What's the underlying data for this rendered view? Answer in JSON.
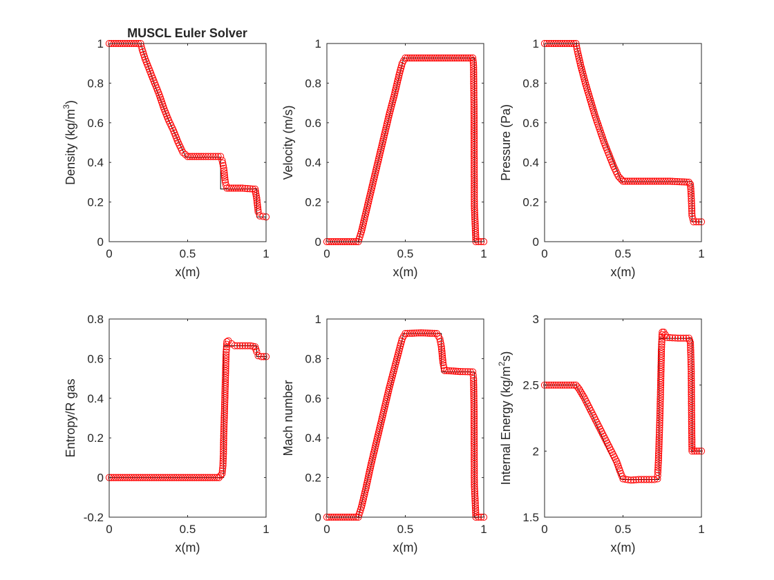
{
  "figure_title": "MUSCL Euler Solver",
  "colors": {
    "marker": "#ff0000",
    "exact": "#000000",
    "axes": "#262626"
  },
  "chart_data": [
    {
      "type": "scatter",
      "id": "density",
      "title": "MUSCL Euler Solver",
      "xlabel": "x(m)",
      "ylabel_parts": [
        "Density (kg/m",
        "3",
        ")"
      ],
      "xlim": [
        0,
        1
      ],
      "ylim": [
        0,
        1
      ],
      "xticks": [
        "0",
        "0.5",
        "1"
      ],
      "yticks": [
        "0",
        "0.2",
        "0.4",
        "0.6",
        "0.8",
        "1"
      ],
      "xtick_values": [
        0,
        0.5,
        1
      ],
      "ytick_values": [
        0,
        0.2,
        0.4,
        0.6,
        0.8,
        1
      ],
      "grid": false,
      "series": [
        {
          "style": "line-black",
          "points": [
            [
              0,
              1
            ],
            [
              0.2,
              1
            ],
            [
              0.29,
              0.79
            ],
            [
              0.38,
              0.61
            ],
            [
              0.49,
              0.426
            ],
            [
              0.71,
              0.426
            ],
            [
              0.71,
              0.266
            ],
            [
              0.94,
              0.266
            ],
            [
              0.94,
              0.125
            ],
            [
              1,
              0.125
            ]
          ]
        },
        {
          "style": "marker-red-circle",
          "points": [
            [
              0,
              1
            ],
            [
              0.2,
              1
            ],
            [
              0.21,
              0.97
            ],
            [
              0.23,
              0.92
            ],
            [
              0.26,
              0.86
            ],
            [
              0.29,
              0.8
            ],
            [
              0.32,
              0.74
            ],
            [
              0.35,
              0.67
            ],
            [
              0.38,
              0.61
            ],
            [
              0.41,
              0.56
            ],
            [
              0.44,
              0.5
            ],
            [
              0.47,
              0.45
            ],
            [
              0.5,
              0.43
            ],
            [
              0.6,
              0.43
            ],
            [
              0.71,
              0.43
            ],
            [
              0.72,
              0.41
            ],
            [
              0.73,
              0.37
            ],
            [
              0.74,
              0.3
            ],
            [
              0.75,
              0.27
            ],
            [
              0.85,
              0.27
            ],
            [
              0.93,
              0.265
            ],
            [
              0.94,
              0.22
            ],
            [
              0.95,
              0.15
            ],
            [
              0.96,
              0.13
            ],
            [
              1,
              0.125
            ]
          ]
        }
      ]
    },
    {
      "type": "scatter",
      "id": "velocity",
      "xlabel": "x(m)",
      "ylabel_parts": [
        "Velocity (m/s)"
      ],
      "xlim": [
        0,
        1
      ],
      "ylim": [
        0,
        1
      ],
      "xticks": [
        "0",
        "0.5",
        "1"
      ],
      "yticks": [
        "0",
        "0.2",
        "0.4",
        "0.6",
        "0.8",
        "1"
      ],
      "xtick_values": [
        0,
        0.5,
        1
      ],
      "ytick_values": [
        0,
        0.2,
        0.4,
        0.6,
        0.8,
        1
      ],
      "grid": false,
      "series": [
        {
          "style": "line-black",
          "points": [
            [
              0,
              0
            ],
            [
              0.2,
              0
            ],
            [
              0.49,
              0.927
            ],
            [
              0.94,
              0.927
            ],
            [
              0.94,
              0
            ],
            [
              1,
              0
            ]
          ]
        },
        {
          "style": "marker-red-circle",
          "points": [
            [
              0,
              0
            ],
            [
              0.1,
              0
            ],
            [
              0.2,
              0
            ],
            [
              0.22,
              0.05
            ],
            [
              0.25,
              0.15
            ],
            [
              0.28,
              0.25
            ],
            [
              0.31,
              0.35
            ],
            [
              0.34,
              0.45
            ],
            [
              0.37,
              0.55
            ],
            [
              0.4,
              0.65
            ],
            [
              0.43,
              0.74
            ],
            [
              0.46,
              0.84
            ],
            [
              0.48,
              0.9
            ],
            [
              0.5,
              0.927
            ],
            [
              0.6,
              0.927
            ],
            [
              0.7,
              0.927
            ],
            [
              0.8,
              0.927
            ],
            [
              0.93,
              0.927
            ],
            [
              0.935,
              0.89
            ],
            [
              0.938,
              0.67
            ],
            [
              0.94,
              0.18
            ],
            [
              0.95,
              0
            ],
            [
              1,
              0
            ]
          ]
        }
      ]
    },
    {
      "type": "scatter",
      "id": "pressure",
      "xlabel": "x(m)",
      "ylabel_parts": [
        "Pressure (Pa)"
      ],
      "xlim": [
        0,
        1
      ],
      "ylim": [
        0,
        1
      ],
      "xticks": [
        "0",
        "0.5",
        "1"
      ],
      "yticks": [
        "0",
        "0.2",
        "0.4",
        "0.6",
        "0.8",
        "1"
      ],
      "xtick_values": [
        0,
        0.5,
        1
      ],
      "ytick_values": [
        0,
        0.2,
        0.4,
        0.6,
        0.8,
        1
      ],
      "grid": false,
      "series": [
        {
          "style": "line-black",
          "points": [
            [
              0,
              1
            ],
            [
              0.2,
              1
            ],
            [
              0.28,
              0.76
            ],
            [
              0.37,
              0.54
            ],
            [
              0.49,
              0.303
            ],
            [
              0.94,
              0.303
            ],
            [
              0.94,
              0.1
            ],
            [
              1,
              0.1
            ]
          ]
        },
        {
          "style": "marker-red-circle",
          "points": [
            [
              0,
              1
            ],
            [
              0.2,
              1
            ],
            [
              0.21,
              0.96
            ],
            [
              0.23,
              0.89
            ],
            [
              0.26,
              0.8
            ],
            [
              0.29,
              0.72
            ],
            [
              0.32,
              0.64
            ],
            [
              0.35,
              0.57
            ],
            [
              0.38,
              0.5
            ],
            [
              0.41,
              0.44
            ],
            [
              0.44,
              0.38
            ],
            [
              0.47,
              0.33
            ],
            [
              0.5,
              0.305
            ],
            [
              0.6,
              0.305
            ],
            [
              0.7,
              0.305
            ],
            [
              0.8,
              0.305
            ],
            [
              0.92,
              0.3
            ],
            [
              0.93,
              0.29
            ],
            [
              0.935,
              0.23
            ],
            [
              0.94,
              0.13
            ],
            [
              0.95,
              0.1
            ],
            [
              1,
              0.1
            ]
          ]
        }
      ]
    },
    {
      "type": "scatter",
      "id": "entropy",
      "xlabel": "x(m)",
      "ylabel_parts": [
        "Entropy/R gas"
      ],
      "xlim": [
        0,
        1
      ],
      "ylim": [
        -0.2,
        0.8
      ],
      "xticks": [
        "0",
        "0.5",
        "1"
      ],
      "yticks": [
        "-0.2",
        "0",
        "0.2",
        "0.4",
        "0.6",
        "0.8"
      ],
      "xtick_values": [
        0,
        0.5,
        1
      ],
      "ytick_values": [
        -0.2,
        0,
        0.2,
        0.4,
        0.6,
        0.8
      ],
      "grid": false,
      "series": [
        {
          "style": "line-black",
          "points": [
            [
              0,
              0
            ],
            [
              0.73,
              0
            ],
            [
              0.73,
              0.665
            ],
            [
              0.94,
              0.665
            ],
            [
              0.94,
              0.61
            ],
            [
              1,
              0.61
            ]
          ]
        },
        {
          "style": "marker-red-circle",
          "points": [
            [
              0,
              0
            ],
            [
              0.1,
              0
            ],
            [
              0.2,
              0
            ],
            [
              0.3,
              0
            ],
            [
              0.4,
              0
            ],
            [
              0.5,
              0
            ],
            [
              0.6,
              0
            ],
            [
              0.7,
              0
            ],
            [
              0.72,
              0.02
            ],
            [
              0.725,
              0.06
            ],
            [
              0.728,
              0.12
            ],
            [
              0.73,
              0.21
            ],
            [
              0.735,
              0.335
            ],
            [
              0.74,
              0.48
            ],
            [
              0.745,
              0.62
            ],
            [
              0.75,
              0.685
            ],
            [
              0.76,
              0.69
            ],
            [
              0.78,
              0.675
            ],
            [
              0.8,
              0.665
            ],
            [
              0.85,
              0.665
            ],
            [
              0.9,
              0.665
            ],
            [
              0.93,
              0.66
            ],
            [
              0.94,
              0.635
            ],
            [
              0.95,
              0.615
            ],
            [
              0.97,
              0.61
            ],
            [
              1,
              0.61
            ]
          ]
        }
      ]
    },
    {
      "type": "scatter",
      "id": "mach",
      "xlabel": "x(m)",
      "ylabel_parts": [
        "Mach number"
      ],
      "xlim": [
        0,
        1
      ],
      "ylim": [
        0,
        1
      ],
      "xticks": [
        "0",
        "0.5",
        "1"
      ],
      "yticks": [
        "0",
        "0.2",
        "0.4",
        "0.6",
        "0.8",
        "1"
      ],
      "xtick_values": [
        0,
        0.5,
        1
      ],
      "ytick_values": [
        0,
        0.2,
        0.4,
        0.6,
        0.8,
        1
      ],
      "grid": false,
      "series": [
        {
          "style": "line-black",
          "points": [
            [
              0,
              0
            ],
            [
              0.2,
              0
            ],
            [
              0.49,
              0.927
            ],
            [
              0.73,
              0.927
            ],
            [
              0.73,
              0.733
            ],
            [
              0.94,
              0.733
            ],
            [
              0.94,
              0
            ],
            [
              1,
              0
            ]
          ]
        },
        {
          "style": "marker-red-circle",
          "points": [
            [
              0,
              0
            ],
            [
              0.1,
              0
            ],
            [
              0.2,
              0
            ],
            [
              0.22,
              0.05
            ],
            [
              0.25,
              0.15
            ],
            [
              0.28,
              0.26
            ],
            [
              0.31,
              0.36
            ],
            [
              0.34,
              0.46
            ],
            [
              0.37,
              0.56
            ],
            [
              0.4,
              0.66
            ],
            [
              0.43,
              0.75
            ],
            [
              0.46,
              0.84
            ],
            [
              0.48,
              0.9
            ],
            [
              0.5,
              0.927
            ],
            [
              0.6,
              0.93
            ],
            [
              0.7,
              0.927
            ],
            [
              0.72,
              0.9
            ],
            [
              0.73,
              0.86
            ],
            [
              0.74,
              0.78
            ],
            [
              0.75,
              0.74
            ],
            [
              0.85,
              0.735
            ],
            [
              0.93,
              0.733
            ],
            [
              0.935,
              0.7
            ],
            [
              0.938,
              0.555
            ],
            [
              0.94,
              0.165
            ],
            [
              0.95,
              0
            ],
            [
              1,
              0
            ]
          ]
        }
      ]
    },
    {
      "type": "scatter",
      "id": "internal-energy",
      "xlabel": "x(m)",
      "ylabel_parts": [
        "Internal Energy (kg/m",
        "2",
        "s)"
      ],
      "xlim": [
        0,
        1
      ],
      "ylim": [
        1.5,
        3
      ],
      "xticks": [
        "0",
        "0.5",
        "1"
      ],
      "yticks": [
        "1.5",
        "2",
        "2.5",
        "3"
      ],
      "xtick_values": [
        0,
        0.5,
        1
      ],
      "ytick_values": [
        1.5,
        2,
        2.5,
        3
      ],
      "grid": false,
      "series": [
        {
          "style": "line-black",
          "points": [
            [
              0,
              2.5
            ],
            [
              0.2,
              2.5
            ],
            [
              0.3,
              2.28
            ],
            [
              0.4,
              2.02
            ],
            [
              0.49,
              1.785
            ],
            [
              0.73,
              1.785
            ],
            [
              0.73,
              2.853
            ],
            [
              0.94,
              2.853
            ],
            [
              0.94,
              2.0
            ],
            [
              1,
              2.0
            ]
          ]
        },
        {
          "style": "marker-red-circle",
          "points": [
            [
              0,
              2.5
            ],
            [
              0.1,
              2.5
            ],
            [
              0.2,
              2.5
            ],
            [
              0.22,
              2.47
            ],
            [
              0.25,
              2.41
            ],
            [
              0.28,
              2.34
            ],
            [
              0.31,
              2.27
            ],
            [
              0.34,
              2.2
            ],
            [
              0.37,
              2.13
            ],
            [
              0.4,
              2.06
            ],
            [
              0.43,
              1.99
            ],
            [
              0.46,
              1.92
            ],
            [
              0.48,
              1.85
            ],
            [
              0.5,
              1.79
            ],
            [
              0.55,
              1.78
            ],
            [
              0.6,
              1.785
            ],
            [
              0.65,
              1.785
            ],
            [
              0.7,
              1.785
            ],
            [
              0.72,
              1.79
            ],
            [
              0.722,
              1.84
            ],
            [
              0.726,
              1.93
            ],
            [
              0.73,
              2.07
            ],
            [
              0.735,
              2.25
            ],
            [
              0.74,
              2.5
            ],
            [
              0.745,
              2.77
            ],
            [
              0.75,
              2.9
            ],
            [
              0.76,
              2.9
            ],
            [
              0.78,
              2.86
            ],
            [
              0.85,
              2.855
            ],
            [
              0.92,
              2.855
            ],
            [
              0.93,
              2.82
            ],
            [
              0.935,
              2.62
            ],
            [
              0.938,
              2.17
            ],
            [
              0.94,
              2.0
            ],
            [
              0.97,
              2.0
            ],
            [
              1,
              2.0
            ]
          ]
        }
      ]
    }
  ]
}
